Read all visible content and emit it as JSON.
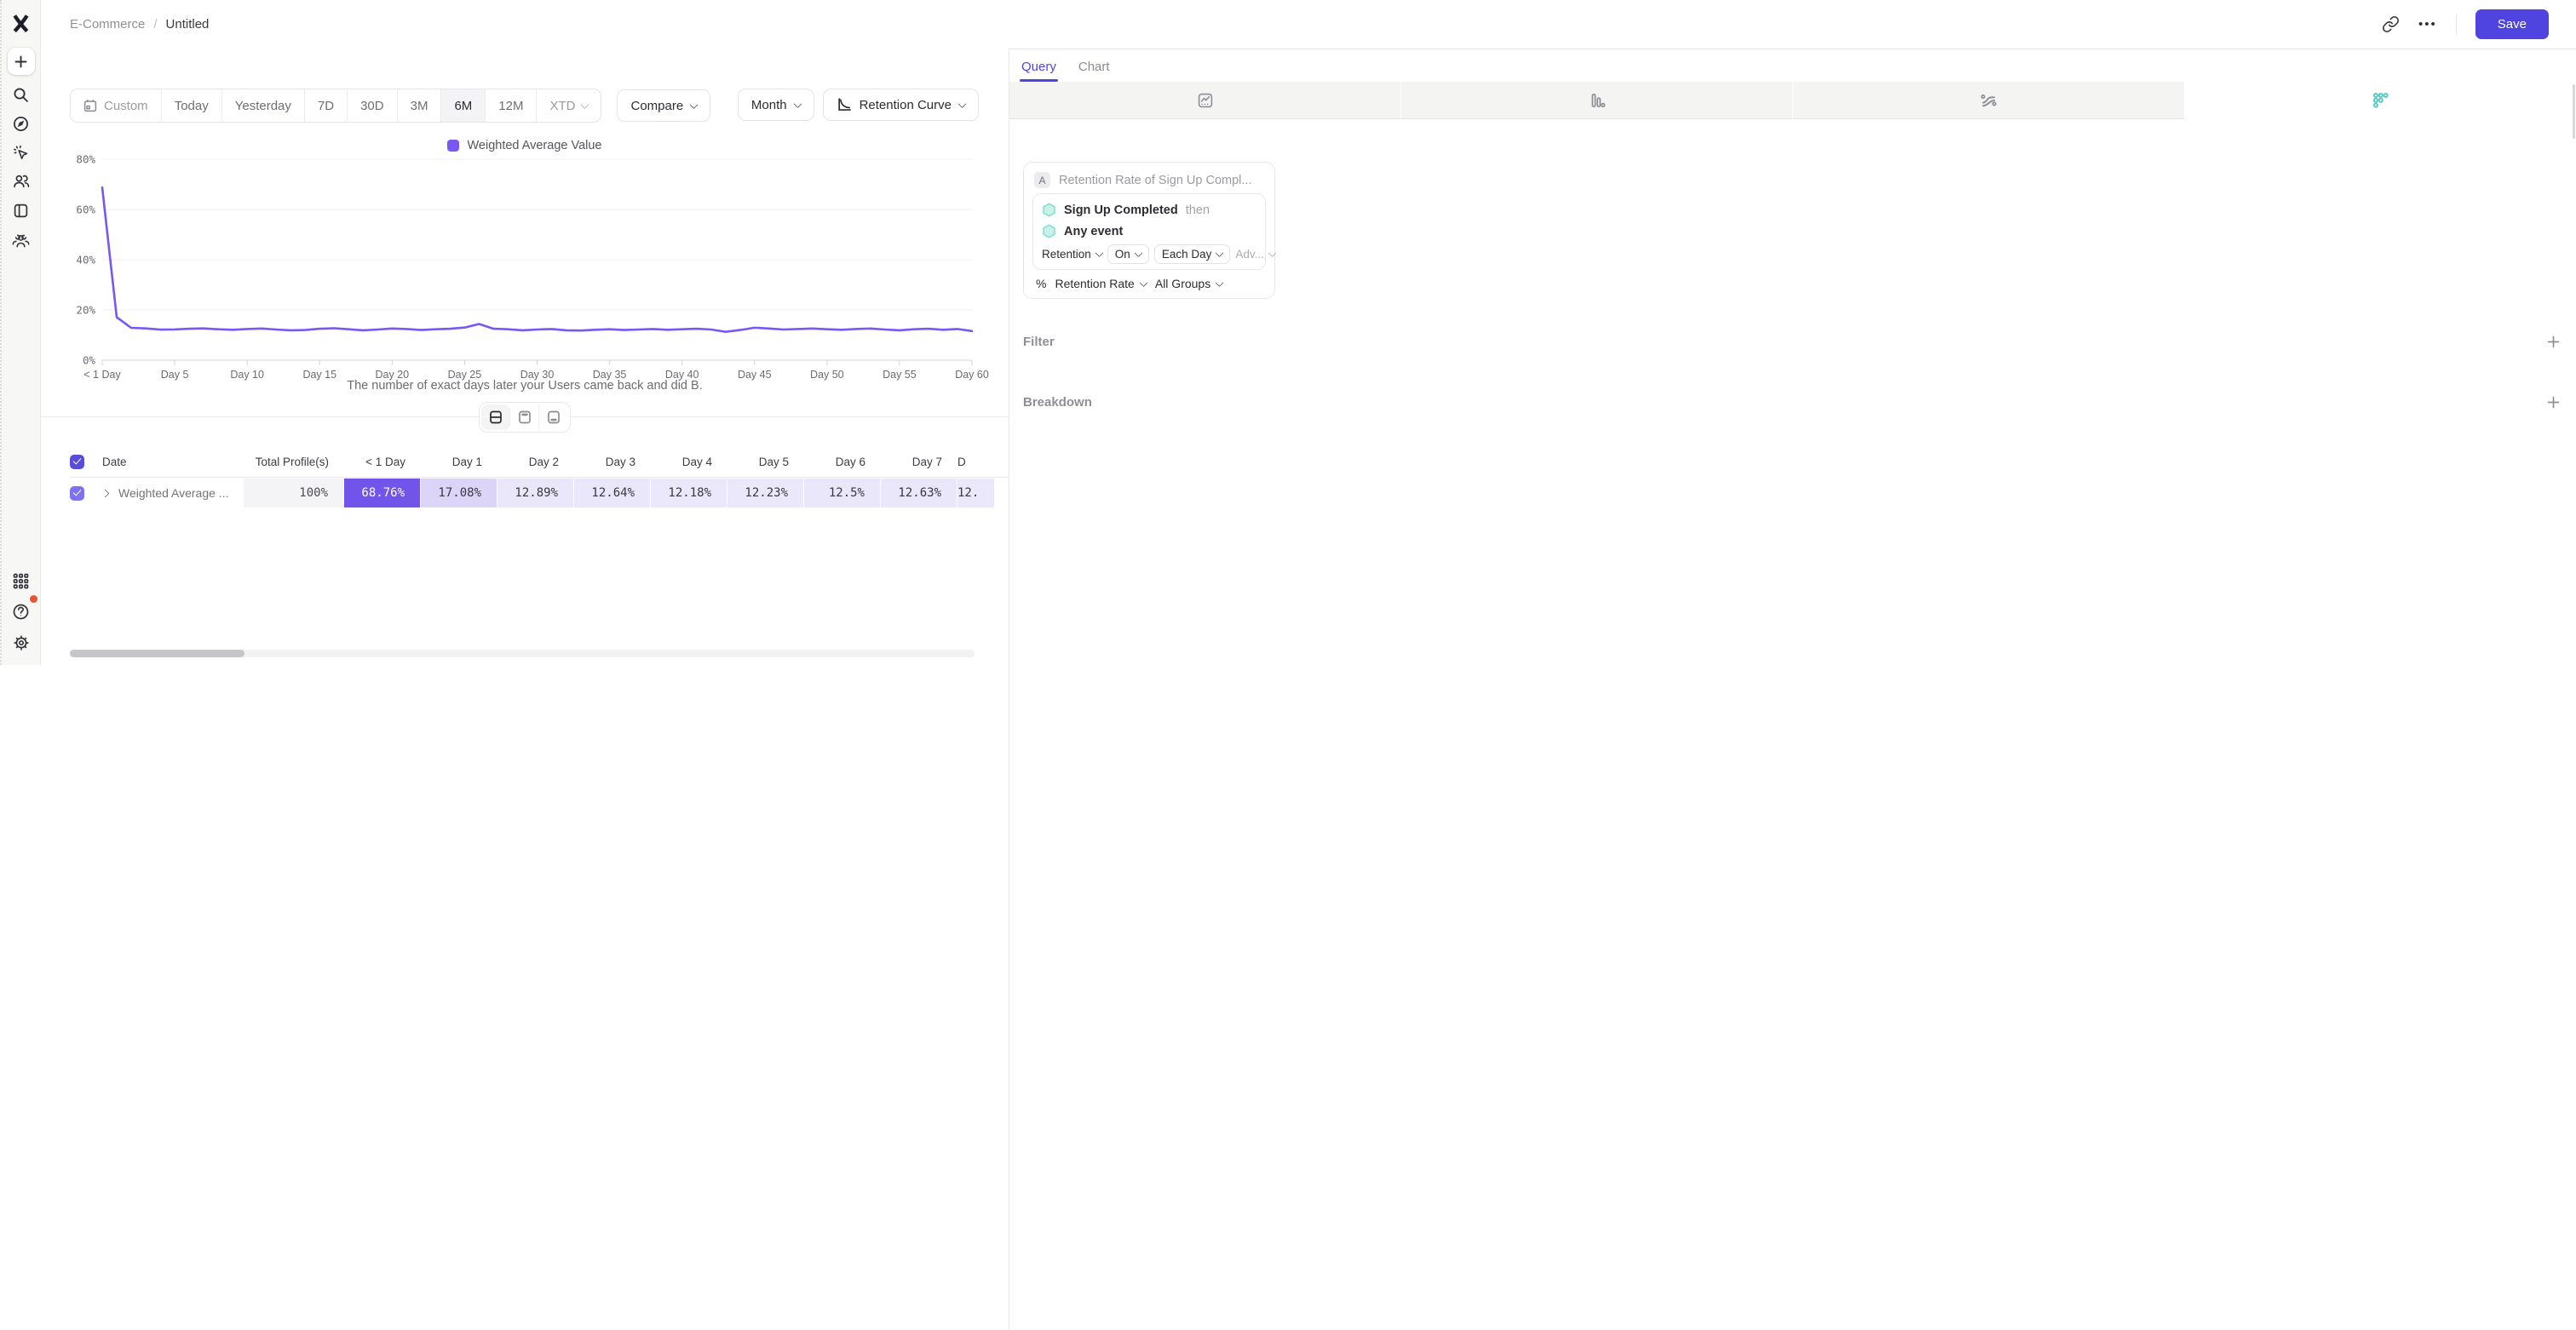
{
  "icons": {
    "ellipsis": "•••",
    "plus": "+"
  },
  "header": {
    "breadcrumb_project": "E-Commerce",
    "breadcrumb_sep": "/",
    "breadcrumb_report": "Untitled",
    "save_label": "Save"
  },
  "toolbar": {
    "ranges": [
      "Custom",
      "Today",
      "Yesterday",
      "7D",
      "30D",
      "3M",
      "6M",
      "12M",
      "XTD"
    ],
    "selected_range": "6M",
    "ranges_with_chevron": [
      "XTD"
    ],
    "muted_ranges": [
      "Custom",
      "XTD"
    ],
    "compare_label": "Compare",
    "granularity_label": "Month",
    "view_label": "Retention Curve"
  },
  "chart_data": {
    "type": "line",
    "series": [
      {
        "name": "Weighted Average Value",
        "color": "#7857F5",
        "values": [
          68.76,
          17.08,
          12.89,
          12.64,
          12.18,
          12.23,
          12.5,
          12.63,
          12.3,
          12.1,
          12.4,
          12.6,
          12.2,
          11.9,
          12.0,
          12.5,
          12.7,
          12.3,
          11.9,
          12.2,
          12.6,
          12.4,
          12.0,
          12.3,
          12.5,
          13.0,
          14.4,
          12.5,
          12.3,
          11.9,
          12.2,
          12.4,
          11.9,
          11.8,
          12.1,
          12.3,
          12.0,
          12.2,
          12.4,
          12.1,
          12.3,
          12.5,
          12.2,
          11.3,
          12.0,
          12.9,
          12.6,
          12.2,
          12.4,
          12.6,
          12.3,
          12.1,
          12.4,
          12.6,
          12.2,
          11.9,
          12.3,
          12.5,
          12.1,
          12.4,
          11.6
        ]
      }
    ],
    "x_start_day": 0,
    "x_end_day": 60,
    "x_tick_days": [
      0,
      5,
      10,
      15,
      20,
      25,
      30,
      35,
      40,
      45,
      50,
      55,
      60
    ],
    "x_tick_labels": [
      "< 1 Day",
      "Day 5",
      "Day 10",
      "Day 15",
      "Day 20",
      "Day 25",
      "Day 30",
      "Day 35",
      "Day 40",
      "Day 45",
      "Day 50",
      "Day 55",
      "Day 60"
    ],
    "yticks": [
      0,
      20,
      40,
      60,
      80
    ],
    "ytick_labels": [
      "0%",
      "20%",
      "40%",
      "60%",
      "80%"
    ],
    "ylim": [
      0,
      80
    ],
    "grid": "horizontal",
    "legend_position": "top-center",
    "xlabel": "The number of exact days later your Users came back and did B."
  },
  "view_toggle": {
    "options": [
      "split-view",
      "chart-only",
      "table-only"
    ],
    "active": "split-view"
  },
  "table": {
    "columns": [
      "Date",
      "Total Profile(s)",
      "< 1 Day",
      "Day 1",
      "Day 2",
      "Day 3",
      "Day 4",
      "Day 5",
      "Day 6",
      "Day 7",
      "D"
    ],
    "rows": [
      {
        "name": "Weighted Average ...",
        "checked": true,
        "cells": [
          {
            "value": "100%",
            "bg": "#f4f4f6",
            "fg": "#4b4b54"
          },
          {
            "value": "68.76%",
            "bg": "#7154ea",
            "fg": "#ffffff"
          },
          {
            "value": "17.08%",
            "bg": "#dcd5f8",
            "fg": "#3b3642"
          },
          {
            "value": "12.89%",
            "bg": "#ebe7fb",
            "fg": "#3b3642"
          },
          {
            "value": "12.64%",
            "bg": "#ebe7fb",
            "fg": "#3b3642"
          },
          {
            "value": "12.18%",
            "bg": "#ece8fb",
            "fg": "#3b3642"
          },
          {
            "value": "12.23%",
            "bg": "#ece8fb",
            "fg": "#3b3642"
          },
          {
            "value": "12.5%",
            "bg": "#ebe7fb",
            "fg": "#3b3642"
          },
          {
            "value": "12.63%",
            "bg": "#ebe7fb",
            "fg": "#3b3642"
          },
          {
            "value": "12.",
            "bg": "#ece8fb",
            "fg": "#3b3642"
          }
        ]
      }
    ]
  },
  "panel": {
    "tabs": [
      {
        "label": "Query",
        "active": true
      },
      {
        "label": "Chart",
        "active": false
      }
    ],
    "chart_types": [
      "insights",
      "funnels",
      "flows",
      "retention"
    ],
    "active_chart_type": "retention",
    "query": {
      "series_badge": "A",
      "series_title": "Retention Rate of Sign Up Compl...",
      "event_first": "Sign Up Completed",
      "then_label": "then",
      "event_return": "Any event",
      "retention_label": "Retention",
      "on_label": "On",
      "bucket_label": "Each Day",
      "advanced_label": "Adv...",
      "percent_label": "%",
      "metric_label": "Retention Rate",
      "groups_label": "All Groups"
    },
    "filter_label": "Filter",
    "breakdown_label": "Breakdown"
  },
  "colors": {
    "accent_purple": "#4f44e0",
    "line_purple": "#7857F5",
    "heat_solid": "#7154ea",
    "teal": "#57c9c3",
    "notification_red": "#e75432"
  }
}
